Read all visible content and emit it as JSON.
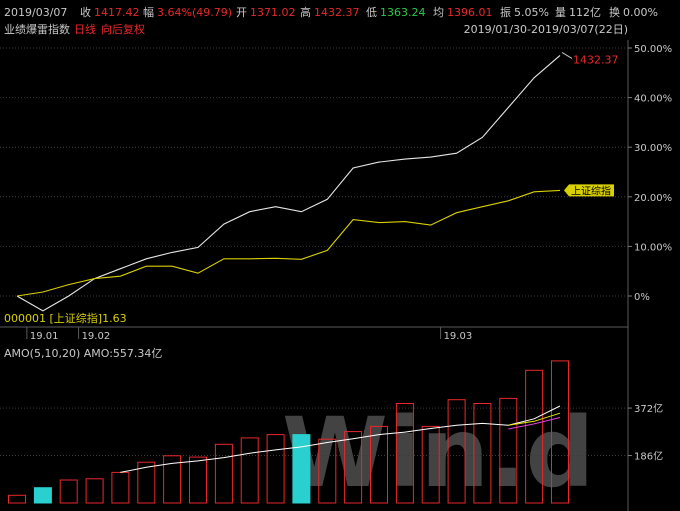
{
  "header": {
    "date": "2019/03/07",
    "close_label": "收",
    "close_value": "1417.42",
    "change_label": "幅",
    "change_value": "3.64%(49.79)",
    "open_label": "开",
    "open_value": "1371.02",
    "high_label": "高",
    "high_value": "1432.37",
    "low_label": "低",
    "low_value": "1363.24",
    "avg_label": "均",
    "avg_value": "1396.01",
    "amplitude_label": "振",
    "amplitude_value": "5.05%",
    "volume_label": "量",
    "volume_value": "112亿",
    "turnover_label": "换",
    "turnover_value": "0.00%"
  },
  "subheader": {
    "index_name": "业绩爆雷指数",
    "period": "日线",
    "adjust": "向后复权",
    "range": "2019/01/30-2019/03/07(22日)"
  },
  "colors": {
    "background": "#000000",
    "grid": "#3a3a3a",
    "main_line": "#e6e6e6",
    "compare_line": "#d8d000",
    "up": "#e8282b",
    "down": "#2ad0d0",
    "ma5": "#ffffff",
    "ma10": "#e7e700",
    "ma20": "#e040e0",
    "watermark": "#7a7a7a"
  },
  "chart_data": [
    {
      "type": "line",
      "title": "业绩爆雷指数",
      "x": [
        "2019-01-30",
        "2019-01-31",
        "2019-02-01",
        "2019-02-11",
        "2019-02-12",
        "2019-02-13",
        "2019-02-14",
        "2019-02-15",
        "2019-02-18",
        "2019-02-19",
        "2019-02-20",
        "2019-02-21",
        "2019-02-22",
        "2019-02-25",
        "2019-02-26",
        "2019-02-27",
        "2019-02-28",
        "2019-03-01",
        "2019-03-04",
        "2019-03-05",
        "2019-03-06",
        "2019-03-07"
      ],
      "x_tick_labels": [
        "19.01",
        "19.02",
        "19.03"
      ],
      "y_unit": "%",
      "ylim": [
        -5,
        53
      ],
      "y_ticks": [
        0,
        10,
        20,
        30,
        40,
        50
      ],
      "y_tick_labels": [
        "0%",
        "10.00%",
        "20.00%",
        "30.00%",
        "40.00%",
        "50.00%"
      ],
      "series": [
        {
          "name": "业绩爆雷指数",
          "color_key": "main_line",
          "values": [
            0,
            -3.0,
            0,
            3.5,
            5.5,
            7.5,
            8.8,
            9.8,
            14.5,
            17.0,
            18.0,
            17.0,
            19.5,
            25.8,
            27.0,
            27.6,
            28.0,
            28.8,
            32.0,
            38.0,
            44.0,
            48.5
          ]
        },
        {
          "name": "上证综指",
          "color_key": "compare_line",
          "values": [
            0,
            0.8,
            2.3,
            3.5,
            4.0,
            6.0,
            6.0,
            4.6,
            7.5,
            7.5,
            7.6,
            7.4,
            9.2,
            15.4,
            14.8,
            15.0,
            14.3,
            16.8,
            18.0,
            19.2,
            21.0,
            21.3
          ]
        }
      ],
      "annotations": [
        {
          "text": "1432.37",
          "target": "max"
        },
        {
          "text": "上证综指",
          "target": "compare_last"
        },
        {
          "text": "000001 [上证综指]1.63",
          "target": "compare_legend"
        }
      ]
    },
    {
      "type": "bar",
      "title": "AMO(5,10,20)",
      "legend_text": "AMO(5,10,20)  AMO:557.34亿",
      "y_unit": "亿",
      "ylim": [
        0,
        580
      ],
      "y_ticks": [
        186,
        372
      ],
      "y_tick_labels": [
        "186亿",
        "372亿"
      ],
      "values": [
        30,
        60,
        90,
        95,
        120,
        160,
        185,
        180,
        230,
        255,
        268,
        268,
        250,
        280,
        300,
        390,
        300,
        405,
        390,
        410,
        520,
        557
      ],
      "bar_colors": [
        "up",
        "down",
        "up",
        "up",
        "up",
        "up",
        "up",
        "up",
        "up",
        "up",
        "up",
        "down",
        "up",
        "up",
        "up",
        "up",
        "up",
        "up",
        "up",
        "up",
        "up",
        "up"
      ],
      "series": [
        {
          "name": "AMO5",
          "color_key": "ma5",
          "values": [
            null,
            null,
            null,
            null,
            120,
            140,
            155,
            165,
            178,
            195,
            208,
            220,
            237,
            252,
            268,
            278,
            292,
            305,
            312,
            305,
            330,
            380
          ]
        },
        {
          "name": "AMO10",
          "color_key": "ma10",
          "values": [
            null,
            null,
            null,
            null,
            null,
            null,
            null,
            null,
            null,
            null,
            null,
            null,
            null,
            null,
            null,
            null,
            null,
            null,
            null,
            305,
            320,
            352
          ]
        },
        {
          "name": "AMO20",
          "color_key": "ma20",
          "values": [
            null,
            null,
            null,
            null,
            null,
            null,
            null,
            null,
            null,
            null,
            null,
            null,
            null,
            null,
            null,
            null,
            null,
            null,
            null,
            290,
            310,
            335
          ]
        }
      ]
    }
  ],
  "watermark": "Win.d"
}
